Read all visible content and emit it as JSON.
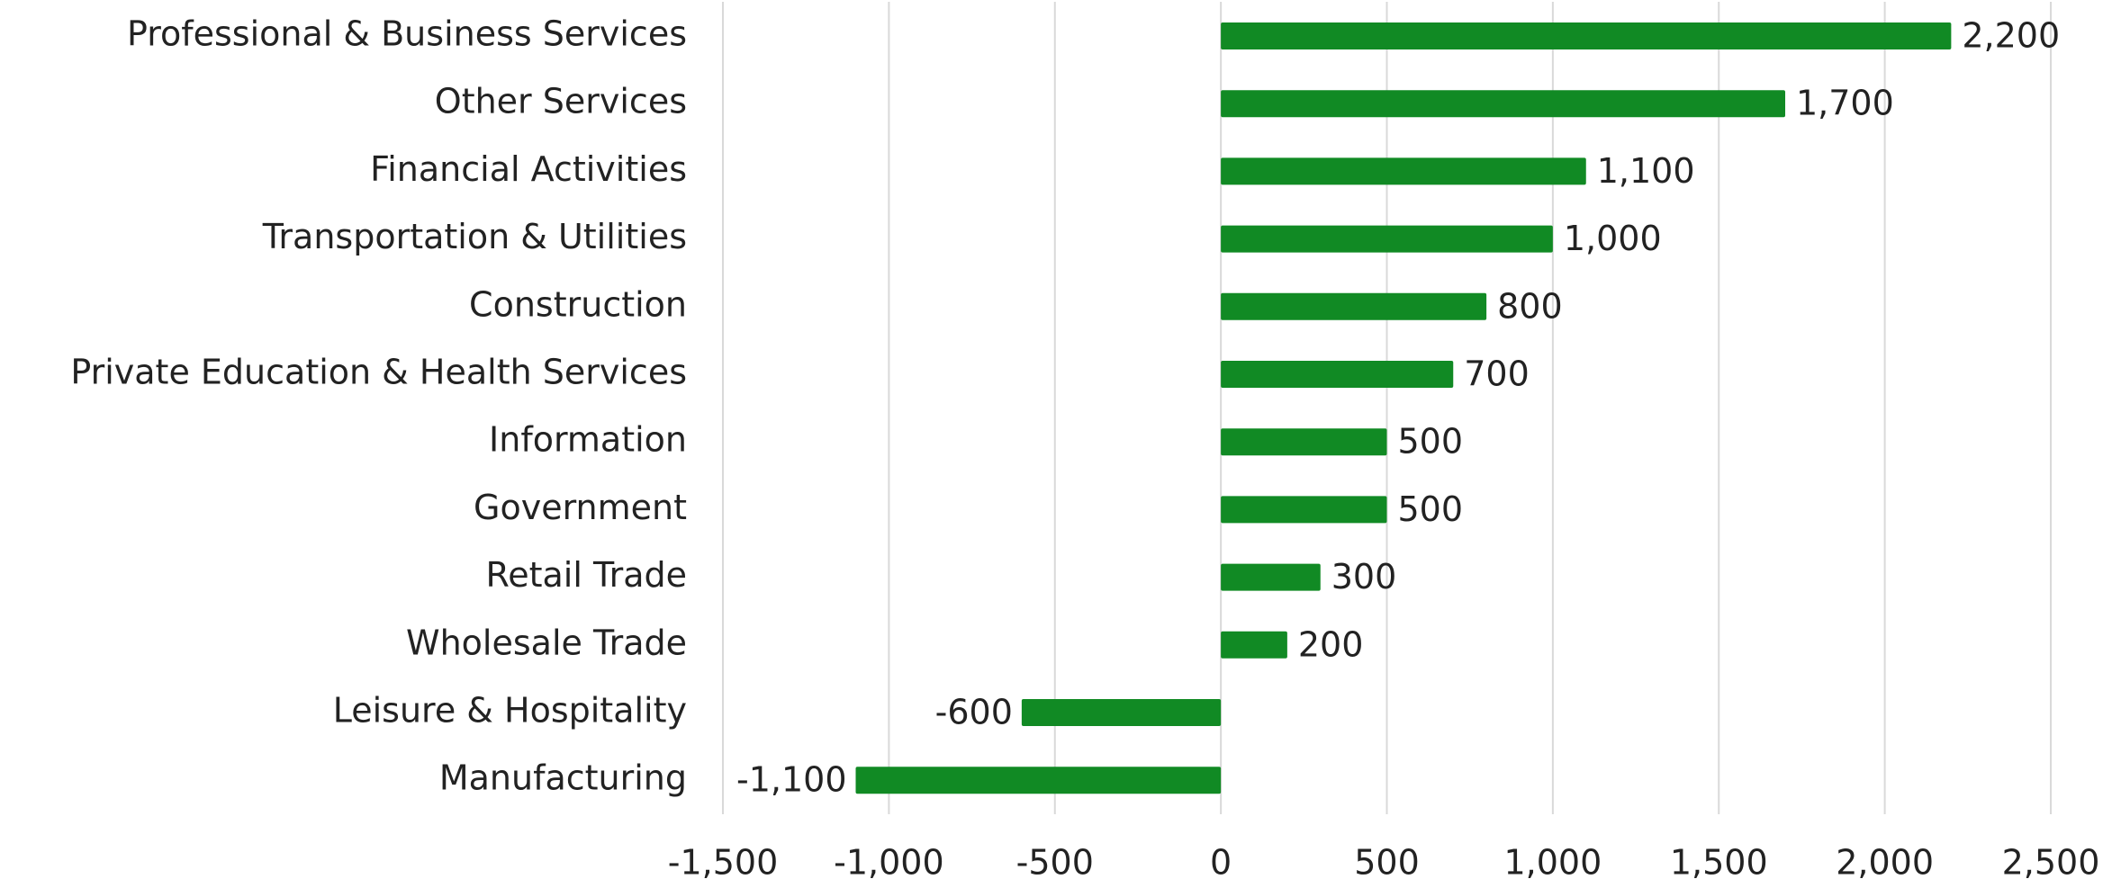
{
  "chart_data": {
    "type": "bar",
    "orientation": "horizontal",
    "categories": [
      "Professional & Business Services",
      "Other Services",
      "Financial Activities",
      "Transportation & Utilities",
      "Construction",
      "Private Education & Health Services",
      "Information",
      "Government",
      "Retail Trade",
      "Wholesale Trade",
      "Leisure & Hospitality",
      "Manufacturing"
    ],
    "values": [
      2200,
      1700,
      1100,
      1000,
      800,
      700,
      500,
      500,
      300,
      200,
      -600,
      -1100
    ],
    "value_labels": [
      "2,200",
      "1,700",
      "1,100",
      "1,000",
      "800",
      "700",
      "500",
      "500",
      "300",
      "200",
      "-600",
      "-1,100"
    ],
    "color": "#118a24",
    "xlim": [
      -1500,
      2500
    ],
    "xticks": [
      {
        "value": -1500,
        "label": "-1,500"
      },
      {
        "value": -1000,
        "label": "-1,000"
      },
      -500,
      0,
      500,
      {
        "value": 1000,
        "label": "1,000"
      },
      {
        "value": 1500,
        "label": "1,500"
      },
      {
        "value": 2000,
        "label": "2,000"
      },
      {
        "value": 2500,
        "label": "2,500"
      }
    ],
    "grid": true
  }
}
